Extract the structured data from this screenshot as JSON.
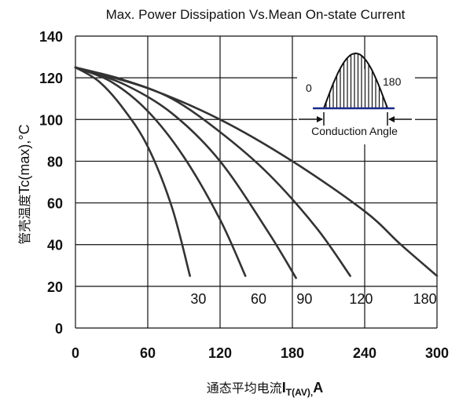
{
  "chart_data": {
    "type": "line",
    "title": "Max. Power Dissipation Vs.Mean On-state Current",
    "xlabel_main": "通态平均电流",
    "xlabel_symbol": "I",
    "xlabel_sub": "T(AV),",
    "xlabel_unit": "A",
    "ylabel_main": "管壳温度",
    "ylabel_symbol": "Tc",
    "ylabel_sub": "(max)",
    "ylabel_unit": ",°C",
    "xlim": [
      0,
      300
    ],
    "ylim": [
      0,
      140
    ],
    "x_ticks": [
      "0",
      "60",
      "120",
      "180",
      "240",
      "300"
    ],
    "y_ticks": [
      "0",
      "20",
      "40",
      "60",
      "80",
      "100",
      "120",
      "140"
    ],
    "grid": true,
    "series": [
      {
        "name": "30",
        "label_x": 102,
        "label_y": 14,
        "points": [
          [
            0,
            125
          ],
          [
            20,
            118
          ],
          [
            40,
            105
          ],
          [
            60,
            87
          ],
          [
            80,
            58
          ],
          [
            95,
            25
          ]
        ]
      },
      {
        "name": "60",
        "label_x": 152,
        "label_y": 14,
        "points": [
          [
            0,
            125
          ],
          [
            30,
            118
          ],
          [
            60,
            104
          ],
          [
            90,
            82
          ],
          [
            120,
            52
          ],
          [
            141,
            25
          ]
        ]
      },
      {
        "name": "90",
        "label_x": 190,
        "label_y": 14,
        "points": [
          [
            0,
            125
          ],
          [
            40,
            117
          ],
          [
            80,
            103
          ],
          [
            120,
            80
          ],
          [
            160,
            46
          ],
          [
            183,
            24
          ]
        ]
      },
      {
        "name": "120",
        "label_x": 237,
        "label_y": 14,
        "points": [
          [
            0,
            125
          ],
          [
            40,
            119
          ],
          [
            80,
            110
          ],
          [
            120,
            94
          ],
          [
            160,
            74
          ],
          [
            200,
            48
          ],
          [
            228,
            25
          ]
        ]
      },
      {
        "name": "180",
        "label_x": 290,
        "label_y": 14,
        "points": [
          [
            0,
            125
          ],
          [
            60,
            115
          ],
          [
            120,
            100
          ],
          [
            180,
            80
          ],
          [
            240,
            56
          ],
          [
            270,
            40
          ],
          [
            300,
            25
          ]
        ]
      }
    ],
    "inset": {
      "left_label": "0",
      "right_label": "180",
      "caption": "Conduction Angle"
    }
  }
}
